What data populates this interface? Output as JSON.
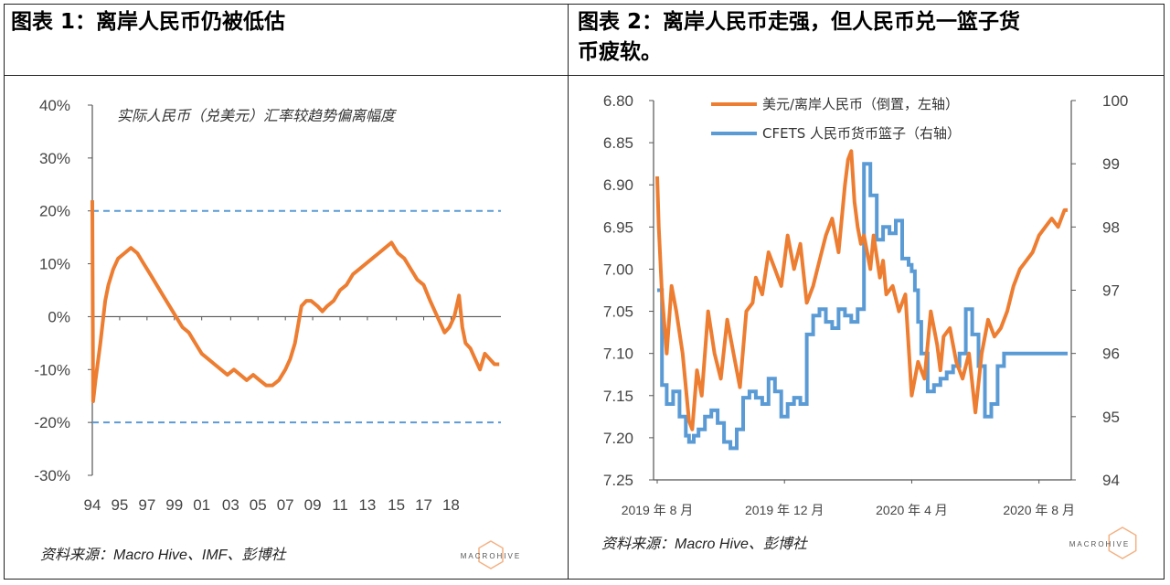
{
  "left": {
    "title": "图表 1：离岸人民币仍被低估",
    "source": "资料来源：Macro Hive、IMF、彭博社",
    "logo_text": "MACROHIVE",
    "chart_data": {
      "type": "line",
      "title": "",
      "annotation": "实际人民币（兑美元）汇率较趋势偏离幅度",
      "xlabel": "",
      "ylabel": "",
      "x_tick_labels": [
        "94",
        "95",
        "97",
        "99",
        "01",
        "03",
        "05",
        "07",
        "09",
        "11",
        "13",
        "15",
        "17",
        "18"
      ],
      "x_ticks_years": [
        1994,
        1995.7,
        1997.4,
        1999.1,
        2000.8,
        2002.6,
        2004.3,
        2006.0,
        2007.7,
        2009.4,
        2011.1,
        2012.9,
        2014.6,
        2016.3
      ],
      "y_tick_labels": [
        "40%",
        "30%",
        "20%",
        "10%",
        "0%",
        "-10%",
        "-20%",
        "-30%"
      ],
      "ylim": [
        -30,
        40
      ],
      "xlim": [
        1994,
        2019.4
      ],
      "series": [
        {
          "color": "#ED7D31",
          "x": [
            1994.0,
            1994.05,
            1994.2,
            1994.5,
            1994.8,
            1995.0,
            1995.3,
            1995.6,
            1996.0,
            1996.4,
            1996.8,
            1997.2,
            1997.6,
            1998.0,
            1998.4,
            1998.8,
            1999.2,
            1999.6,
            2000.0,
            2000.4,
            2000.8,
            2001.2,
            2001.6,
            2002.0,
            2002.4,
            2002.8,
            2003.2,
            2003.6,
            2004.0,
            2004.4,
            2004.8,
            2005.2,
            2005.6,
            2006.0,
            2006.3,
            2006.6,
            2007.0,
            2007.3,
            2007.6,
            2008.0,
            2008.3,
            2008.6,
            2009.0,
            2009.4,
            2009.8,
            2010.2,
            2010.6,
            2011.0,
            2011.4,
            2011.8,
            2012.2,
            2012.6,
            2013.0,
            2013.4,
            2013.8,
            2014.2,
            2014.6,
            2015.0,
            2015.3,
            2015.6,
            2015.9,
            2016.2,
            2016.5,
            2016.8,
            2017.0,
            2017.2,
            2017.5,
            2017.8,
            2018.1,
            2018.4,
            2018.7,
            2019.0,
            2019.3
          ],
          "values": [
            22,
            -16,
            -12,
            -5,
            3,
            6,
            9,
            11,
            12,
            13,
            12,
            10,
            8,
            6,
            4,
            2,
            0,
            -2,
            -3,
            -5,
            -7,
            -8,
            -9,
            -10,
            -11,
            -10,
            -11,
            -12,
            -11,
            -12,
            -13,
            -13,
            -12,
            -10,
            -8,
            -5,
            2,
            3,
            3,
            2,
            1,
            2,
            3,
            5,
            6,
            8,
            9,
            10,
            11,
            12,
            13,
            14,
            12,
            11,
            9,
            7,
            6,
            3,
            1,
            -1,
            -3,
            -2,
            0,
            4,
            -2,
            -5,
            -6,
            -8,
            -10,
            -7,
            -8,
            -9,
            -9
          ]
        }
      ],
      "reference_lines": [
        {
          "y": 20,
          "color": "#5B9BD5",
          "style": "dashed"
        },
        {
          "y": -20,
          "color": "#5B9BD5",
          "style": "dashed"
        }
      ],
      "grid": false
    }
  },
  "right": {
    "title_line1": "图表 2：离岸人民币走强，但人民币兑一篮子货",
    "title_line2": "币疲软。",
    "source": "资料来源：Macro Hive、彭博社",
    "logo_text": "MACROHIVE",
    "chart_data": {
      "type": "line",
      "title": "",
      "xlabel": "",
      "x_tick_labels": [
        "2019 年 8 月",
        "2019 年 12 月",
        "2020 年 4 月",
        "2020 年 8 月"
      ],
      "x_ticks_month_index": [
        0,
        4,
        8,
        12
      ],
      "left_axis": {
        "tick_labels": [
          "6.80",
          "6.85",
          "6.90",
          "6.95",
          "7.00",
          "7.05",
          "7.10",
          "7.15",
          "7.20",
          "7.25"
        ],
        "range": [
          6.8,
          7.25
        ],
        "inverted": true
      },
      "right_axis": {
        "tick_labels": [
          "100",
          "99",
          "98",
          "97",
          "96",
          "95",
          "94"
        ],
        "range": [
          94,
          100
        ]
      },
      "xlim": [
        0,
        12.9
      ],
      "legend_position": "top-center",
      "series": [
        {
          "name": "美元/离岸人民币（倒置，左轴）",
          "color": "#ED7D31",
          "axis": "left",
          "x": [
            0.0,
            0.05,
            0.15,
            0.3,
            0.45,
            0.6,
            0.8,
            1.0,
            1.1,
            1.25,
            1.4,
            1.6,
            1.8,
            2.0,
            2.2,
            2.4,
            2.6,
            2.8,
            3.0,
            3.1,
            3.3,
            3.5,
            3.7,
            3.9,
            4.1,
            4.3,
            4.5,
            4.7,
            4.9,
            5.1,
            5.3,
            5.5,
            5.7,
            5.9,
            6.0,
            6.1,
            6.2,
            6.3,
            6.4,
            6.5,
            6.6,
            6.7,
            6.8,
            7.0,
            7.1,
            7.2,
            7.4,
            7.6,
            7.8,
            8.0,
            8.2,
            8.4,
            8.6,
            8.8,
            8.9,
            9.0,
            9.2,
            9.4,
            9.6,
            9.8,
            10.0,
            10.2,
            10.4,
            10.6,
            10.8,
            11.0,
            11.2,
            11.4,
            11.6,
            11.8,
            12.0,
            12.2,
            12.4,
            12.6,
            12.8,
            12.9
          ],
          "values": [
            6.89,
            6.95,
            7.03,
            7.1,
            7.02,
            7.05,
            7.1,
            7.18,
            7.19,
            7.12,
            7.15,
            7.05,
            7.1,
            7.13,
            7.06,
            7.1,
            7.14,
            7.05,
            7.04,
            7.01,
            7.03,
            6.98,
            7.0,
            7.02,
            6.96,
            7.0,
            6.97,
            7.04,
            7.02,
            6.99,
            6.96,
            6.94,
            6.98,
            6.9,
            6.87,
            6.86,
            6.92,
            6.95,
            6.97,
            6.96,
            6.98,
            7.0,
            6.96,
            7.01,
            6.99,
            7.03,
            7.02,
            7.05,
            7.03,
            7.15,
            7.11,
            7.13,
            7.05,
            7.09,
            7.12,
            7.08,
            7.07,
            7.11,
            7.13,
            7.1,
            7.17,
            7.1,
            7.06,
            7.08,
            7.07,
            7.05,
            7.02,
            7.0,
            6.99,
            6.98,
            6.96,
            6.95,
            6.94,
            6.95,
            6.93,
            6.93
          ]
        },
        {
          "name": "CFETS 人民币货币篮子（右轴）",
          "color": "#5B9BD5",
          "axis": "right",
          "x": [
            0.0,
            0.15,
            0.3,
            0.5,
            0.7,
            0.9,
            1.0,
            1.15,
            1.3,
            1.5,
            1.7,
            1.9,
            2.1,
            2.3,
            2.5,
            2.7,
            2.9,
            3.1,
            3.3,
            3.5,
            3.7,
            3.9,
            4.1,
            4.3,
            4.5,
            4.7,
            4.9,
            5.1,
            5.3,
            5.5,
            5.7,
            5.9,
            6.1,
            6.3,
            6.5,
            6.7,
            6.9,
            7.1,
            7.3,
            7.5,
            7.7,
            7.9,
            8.0,
            8.1,
            8.2,
            8.3,
            8.5,
            8.7,
            8.9,
            9.1,
            9.3,
            9.5,
            9.7,
            9.9,
            10.1,
            10.3,
            10.5,
            10.7,
            10.9,
            11.1,
            11.3,
            11.5,
            11.7,
            11.9,
            12.1,
            12.3,
            12.5,
            12.7,
            12.9
          ],
          "values": [
            97.0,
            95.5,
            95.2,
            95.4,
            95.0,
            94.7,
            94.6,
            94.7,
            94.8,
            95.0,
            95.1,
            94.9,
            94.6,
            94.5,
            94.8,
            95.3,
            95.4,
            95.3,
            95.2,
            95.6,
            95.4,
            95.0,
            95.2,
            95.3,
            95.2,
            96.3,
            96.6,
            96.7,
            96.5,
            96.4,
            96.7,
            96.6,
            96.5,
            96.7,
            99.0,
            98.5,
            97.8,
            98.0,
            97.9,
            98.1,
            97.5,
            97.4,
            97.3,
            97.0,
            96.5,
            96.0,
            95.4,
            95.5,
            95.6,
            95.7,
            95.8,
            96.0,
            96.7,
            96.3,
            95.8,
            95.0,
            95.2,
            95.8,
            96.0,
            96.0,
            96.0,
            96.0,
            96.0,
            96.0,
            96.0,
            96.0,
            96.0,
            96.0,
            96.0
          ]
        }
      ],
      "grid": false
    }
  }
}
